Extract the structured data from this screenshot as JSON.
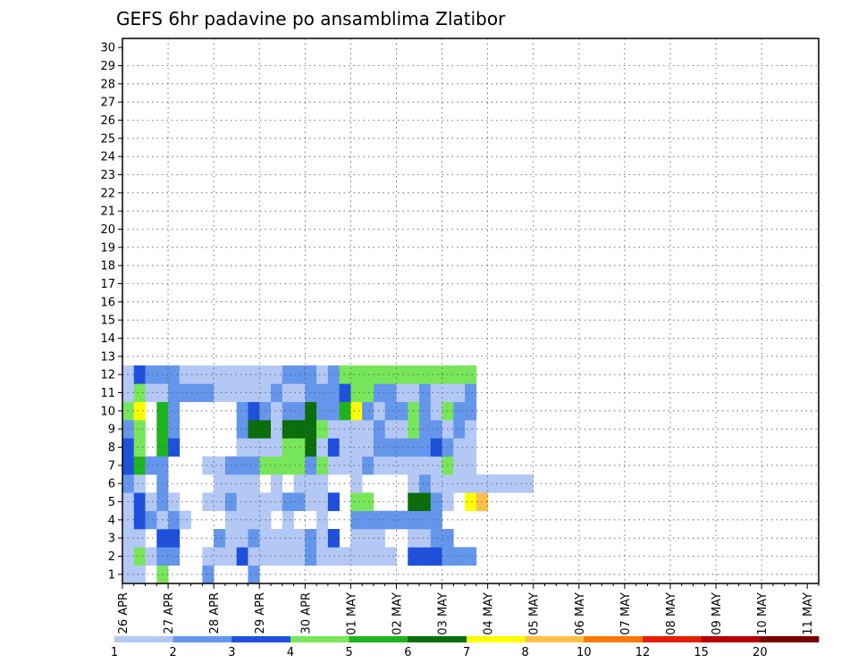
{
  "chart_data": {
    "type": "heatmap",
    "title": "GEFS 6hr padavine po ansamblima Zlatibor",
    "xlabel": "",
    "ylabel": "",
    "x_start": "26 APR",
    "x_end": "11 MAY",
    "x_steps": 61,
    "x_step_hours": 6,
    "x_tick_labels": [
      "26 APR",
      "27 APR",
      "28 APR",
      "29 APR",
      "30 APR",
      "01 MAY",
      "02 MAY",
      "03 MAY",
      "04 MAY",
      "05 MAY",
      "06 MAY",
      "07 MAY",
      "08 MAY",
      "09 MAY",
      "10 MAY",
      "11 MAY"
    ],
    "y_tick_labels": [
      "1",
      "2",
      "3",
      "4",
      "5",
      "6",
      "7",
      "8",
      "9",
      "10",
      "11",
      "12",
      "13",
      "14",
      "15",
      "16",
      "17",
      "18",
      "19",
      "20",
      "21",
      "22",
      "23",
      "24",
      "25",
      "26",
      "27",
      "28",
      "29",
      "30"
    ],
    "ylim": [
      1,
      30
    ],
    "grid": true,
    "legend": {
      "placement": "bottom",
      "thresholds": [
        "1",
        "2",
        "3",
        "4",
        "5",
        "6",
        "7",
        "8",
        "10",
        "12",
        "15",
        "20"
      ],
      "colors": [
        "#b4c8f5",
        "#6496eb",
        "#1e50dc",
        "#78e65a",
        "#1eb41e",
        "#0a6e0a",
        "#ffff00",
        "#ffbe46",
        "#ff7800",
        "#e61e00",
        "#b40000",
        "#780000"
      ]
    },
    "cells": [
      [
        0,
        1,
        1
      ],
      [
        1,
        1,
        1
      ],
      [
        3,
        1,
        4
      ],
      [
        7,
        1,
        2
      ],
      [
        11,
        1,
        2
      ],
      [
        11,
        1,
        2
      ],
      [
        0,
        2,
        1
      ],
      [
        1,
        2,
        4
      ],
      [
        2,
        2,
        1
      ],
      [
        3,
        2,
        2
      ],
      [
        4,
        2,
        2
      ],
      [
        7,
        2,
        1
      ],
      [
        8,
        2,
        1
      ],
      [
        9,
        2,
        1
      ],
      [
        10,
        2,
        3
      ],
      [
        11,
        2,
        1
      ],
      [
        12,
        2,
        1
      ],
      [
        13,
        2,
        1
      ],
      [
        14,
        2,
        1
      ],
      [
        15,
        2,
        1
      ],
      [
        16,
        2,
        2
      ],
      [
        17,
        2,
        1
      ],
      [
        18,
        2,
        1
      ],
      [
        19,
        2,
        1
      ],
      [
        20,
        2,
        1
      ],
      [
        21,
        2,
        1
      ],
      [
        22,
        2,
        1
      ],
      [
        23,
        2,
        1
      ],
      [
        25,
        2,
        3
      ],
      [
        26,
        2,
        3
      ],
      [
        27,
        2,
        3
      ],
      [
        28,
        2,
        2
      ],
      [
        29,
        2,
        2
      ],
      [
        30,
        2,
        2
      ],
      [
        0,
        3,
        1
      ],
      [
        1,
        3,
        1
      ],
      [
        3,
        3,
        3
      ],
      [
        4,
        3,
        3
      ],
      [
        8,
        3,
        2
      ],
      [
        9,
        3,
        1
      ],
      [
        10,
        3,
        1
      ],
      [
        11,
        3,
        2
      ],
      [
        12,
        3,
        1
      ],
      [
        13,
        3,
        1
      ],
      [
        14,
        3,
        1
      ],
      [
        15,
        3,
        1
      ],
      [
        16,
        3,
        2
      ],
      [
        17,
        3,
        1
      ],
      [
        18,
        3,
        3
      ],
      [
        20,
        3,
        1
      ],
      [
        21,
        3,
        1
      ],
      [
        22,
        3,
        1
      ],
      [
        25,
        3,
        1
      ],
      [
        26,
        3,
        1
      ],
      [
        27,
        3,
        2
      ],
      [
        28,
        3,
        2
      ],
      [
        0,
        4,
        1
      ],
      [
        1,
        4,
        3
      ],
      [
        2,
        4,
        2
      ],
      [
        3,
        4,
        1
      ],
      [
        4,
        4,
        2
      ],
      [
        5,
        4,
        1
      ],
      [
        9,
        4,
        1
      ],
      [
        10,
        4,
        1
      ],
      [
        11,
        4,
        1
      ],
      [
        12,
        4,
        1
      ],
      [
        14,
        4,
        1
      ],
      [
        17,
        4,
        1
      ],
      [
        20,
        4,
        2
      ],
      [
        21,
        4,
        2
      ],
      [
        22,
        4,
        2
      ],
      [
        23,
        4,
        2
      ],
      [
        24,
        4,
        2
      ],
      [
        25,
        4,
        2
      ],
      [
        26,
        4,
        2
      ],
      [
        27,
        4,
        2
      ],
      [
        0,
        5,
        1
      ],
      [
        1,
        5,
        3
      ],
      [
        2,
        5,
        1
      ],
      [
        3,
        5,
        2
      ],
      [
        4,
        5,
        1
      ],
      [
        7,
        5,
        1
      ],
      [
        8,
        5,
        1
      ],
      [
        9,
        5,
        2
      ],
      [
        10,
        5,
        1
      ],
      [
        11,
        5,
        1
      ],
      [
        12,
        5,
        1
      ],
      [
        13,
        5,
        1
      ],
      [
        14,
        5,
        2
      ],
      [
        15,
        5,
        2
      ],
      [
        16,
        5,
        1
      ],
      [
        17,
        5,
        1
      ],
      [
        18,
        5,
        3
      ],
      [
        20,
        5,
        4
      ],
      [
        21,
        5,
        4
      ],
      [
        25,
        5,
        6
      ],
      [
        26,
        5,
        6
      ],
      [
        27,
        5,
        2
      ],
      [
        28,
        5,
        1
      ],
      [
        30,
        5,
        7
      ],
      [
        31,
        5,
        8
      ],
      [
        0,
        6,
        2
      ],
      [
        1,
        6,
        1
      ],
      [
        3,
        6,
        2
      ],
      [
        8,
        6,
        1
      ],
      [
        9,
        6,
        1
      ],
      [
        10,
        6,
        1
      ],
      [
        11,
        6,
        1
      ],
      [
        13,
        6,
        1
      ],
      [
        15,
        6,
        1
      ],
      [
        16,
        6,
        1
      ],
      [
        17,
        6,
        1
      ],
      [
        20,
        6,
        1
      ],
      [
        25,
        6,
        1
      ],
      [
        26,
        6,
        2
      ],
      [
        27,
        6,
        1
      ],
      [
        28,
        6,
        1
      ],
      [
        29,
        6,
        1
      ],
      [
        30,
        6,
        1
      ],
      [
        31,
        6,
        1
      ],
      [
        32,
        6,
        1
      ],
      [
        33,
        6,
        1
      ],
      [
        34,
        6,
        1
      ],
      [
        35,
        6,
        1
      ],
      [
        0,
        7,
        3
      ],
      [
        1,
        7,
        5
      ],
      [
        2,
        7,
        2
      ],
      [
        3,
        7,
        2
      ],
      [
        7,
        7,
        1
      ],
      [
        8,
        7,
        1
      ],
      [
        9,
        7,
        2
      ],
      [
        10,
        7,
        2
      ],
      [
        11,
        7,
        2
      ],
      [
        12,
        7,
        4
      ],
      [
        13,
        7,
        4
      ],
      [
        14,
        7,
        4
      ],
      [
        15,
        7,
        4
      ],
      [
        16,
        7,
        2
      ],
      [
        17,
        7,
        4
      ],
      [
        18,
        7,
        1
      ],
      [
        19,
        7,
        1
      ],
      [
        20,
        7,
        1
      ],
      [
        21,
        7,
        2
      ],
      [
        22,
        7,
        1
      ],
      [
        23,
        7,
        1
      ],
      [
        24,
        7,
        1
      ],
      [
        25,
        7,
        1
      ],
      [
        26,
        7,
        1
      ],
      [
        27,
        7,
        1
      ],
      [
        28,
        7,
        4
      ],
      [
        29,
        7,
        1
      ],
      [
        30,
        7,
        1
      ],
      [
        0,
        8,
        3
      ],
      [
        1,
        8,
        4
      ],
      [
        3,
        8,
        5
      ],
      [
        4,
        8,
        3
      ],
      [
        10,
        8,
        1
      ],
      [
        11,
        8,
        1
      ],
      [
        12,
        8,
        1
      ],
      [
        13,
        8,
        1
      ],
      [
        14,
        8,
        4
      ],
      [
        15,
        8,
        4
      ],
      [
        16,
        8,
        6
      ],
      [
        17,
        8,
        1
      ],
      [
        18,
        8,
        3
      ],
      [
        19,
        8,
        1
      ],
      [
        20,
        8,
        1
      ],
      [
        21,
        8,
        1
      ],
      [
        22,
        8,
        2
      ],
      [
        23,
        8,
        2
      ],
      [
        24,
        8,
        2
      ],
      [
        25,
        8,
        2
      ],
      [
        26,
        8,
        2
      ],
      [
        27,
        8,
        3
      ],
      [
        28,
        8,
        2
      ],
      [
        29,
        8,
        1
      ],
      [
        30,
        8,
        1
      ],
      [
        0,
        9,
        2
      ],
      [
        1,
        9,
        4
      ],
      [
        3,
        9,
        5
      ],
      [
        4,
        9,
        2
      ],
      [
        10,
        9,
        2
      ],
      [
        11,
        9,
        6
      ],
      [
        12,
        9,
        6
      ],
      [
        13,
        9,
        1
      ],
      [
        14,
        9,
        6
      ],
      [
        15,
        9,
        6
      ],
      [
        16,
        9,
        6
      ],
      [
        17,
        9,
        4
      ],
      [
        18,
        9,
        1
      ],
      [
        19,
        9,
        1
      ],
      [
        20,
        9,
        1
      ],
      [
        21,
        9,
        1
      ],
      [
        22,
        9,
        2
      ],
      [
        23,
        9,
        1
      ],
      [
        24,
        9,
        1
      ],
      [
        25,
        9,
        4
      ],
      [
        26,
        9,
        2
      ],
      [
        27,
        9,
        2
      ],
      [
        28,
        9,
        1
      ],
      [
        29,
        9,
        2
      ],
      [
        30,
        9,
        1
      ],
      [
        0,
        10,
        4
      ],
      [
        1,
        10,
        7
      ],
      [
        3,
        10,
        5
      ],
      [
        4,
        10,
        2
      ],
      [
        10,
        10,
        2
      ],
      [
        11,
        10,
        3
      ],
      [
        12,
        10,
        2
      ],
      [
        13,
        10,
        1
      ],
      [
        14,
        10,
        2
      ],
      [
        15,
        10,
        2
      ],
      [
        16,
        10,
        6
      ],
      [
        17,
        10,
        2
      ],
      [
        18,
        10,
        2
      ],
      [
        19,
        10,
        5
      ],
      [
        20,
        10,
        7
      ],
      [
        21,
        10,
        2
      ],
      [
        22,
        10,
        1
      ],
      [
        23,
        10,
        2
      ],
      [
        24,
        10,
        2
      ],
      [
        25,
        10,
        4
      ],
      [
        26,
        10,
        2
      ],
      [
        27,
        10,
        1
      ],
      [
        28,
        10,
        4
      ],
      [
        29,
        10,
        2
      ],
      [
        30,
        10,
        2
      ],
      [
        0,
        11,
        1
      ],
      [
        1,
        11,
        4
      ],
      [
        2,
        11,
        1
      ],
      [
        3,
        11,
        1
      ],
      [
        4,
        11,
        2
      ],
      [
        5,
        11,
        2
      ],
      [
        6,
        11,
        2
      ],
      [
        7,
        11,
        2
      ],
      [
        8,
        11,
        1
      ],
      [
        9,
        11,
        1
      ],
      [
        10,
        11,
        1
      ],
      [
        11,
        11,
        1
      ],
      [
        12,
        11,
        1
      ],
      [
        13,
        11,
        2
      ],
      [
        14,
        11,
        1
      ],
      [
        15,
        11,
        1
      ],
      [
        16,
        11,
        2
      ],
      [
        17,
        11,
        2
      ],
      [
        18,
        11,
        2
      ],
      [
        19,
        11,
        3
      ],
      [
        20,
        11,
        4
      ],
      [
        21,
        11,
        4
      ],
      [
        22,
        11,
        2
      ],
      [
        23,
        11,
        2
      ],
      [
        24,
        11,
        1
      ],
      [
        25,
        11,
        1
      ],
      [
        26,
        11,
        2
      ],
      [
        27,
        11,
        1
      ],
      [
        28,
        11,
        1
      ],
      [
        29,
        11,
        1
      ],
      [
        30,
        11,
        2
      ],
      [
        0,
        12,
        1
      ],
      [
        1,
        12,
        3
      ],
      [
        2,
        12,
        2
      ],
      [
        3,
        12,
        2
      ],
      [
        4,
        12,
        2
      ],
      [
        5,
        12,
        1
      ],
      [
        6,
        12,
        1
      ],
      [
        7,
        12,
        1
      ],
      [
        8,
        12,
        1
      ],
      [
        9,
        12,
        1
      ],
      [
        10,
        12,
        1
      ],
      [
        11,
        12,
        1
      ],
      [
        12,
        12,
        1
      ],
      [
        13,
        12,
        1
      ],
      [
        14,
        12,
        2
      ],
      [
        15,
        12,
        2
      ],
      [
        16,
        12,
        2
      ],
      [
        17,
        12,
        1
      ],
      [
        18,
        12,
        2
      ],
      [
        19,
        12,
        4
      ],
      [
        20,
        12,
        4
      ],
      [
        21,
        12,
        4
      ],
      [
        22,
        12,
        4
      ],
      [
        23,
        12,
        4
      ],
      [
        24,
        12,
        4
      ],
      [
        25,
        12,
        4
      ],
      [
        26,
        12,
        4
      ],
      [
        27,
        12,
        4
      ],
      [
        28,
        12,
        4
      ],
      [
        29,
        12,
        4
      ],
      [
        30,
        12,
        4
      ]
    ]
  }
}
